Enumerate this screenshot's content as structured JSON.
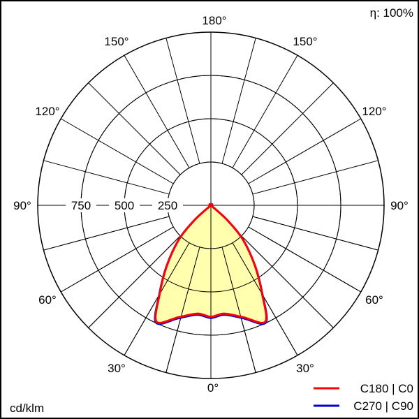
{
  "chart_data": {
    "type": "polar",
    "unit_label": "cd/klm",
    "efficiency_label": "η: 100%",
    "radial_ticks": [
      250,
      500,
      750
    ],
    "radial_max": 1000,
    "angle_ticks": [
      {
        "label": "0°",
        "angle": 0
      },
      {
        "label": "30°",
        "angle": 30
      },
      {
        "label": "60°",
        "angle": 60
      },
      {
        "label": "90°",
        "angle": 90
      },
      {
        "label": "120°",
        "angle": 120
      },
      {
        "label": "150°",
        "angle": 150
      },
      {
        "label": "180°",
        "angle": 180
      }
    ],
    "gamma": [
      0,
      7,
      16,
      25,
      30,
      36,
      43,
      48,
      55,
      90,
      180
    ],
    "series": [
      {
        "name": "C180 | C0",
        "color": "#ff0000",
        "values": [
          644,
          630,
          672,
          742,
          592,
          434,
          272,
          126,
          0,
          0,
          0
        ]
      },
      {
        "name": "C270 | C90",
        "color": "#0000cc",
        "values": [
          650,
          636,
          678,
          748,
          596,
          436,
          273,
          126,
          0,
          0,
          0
        ]
      }
    ],
    "fill_color": "#ffff99",
    "grid": true,
    "legend_placement": "bottom-right"
  }
}
